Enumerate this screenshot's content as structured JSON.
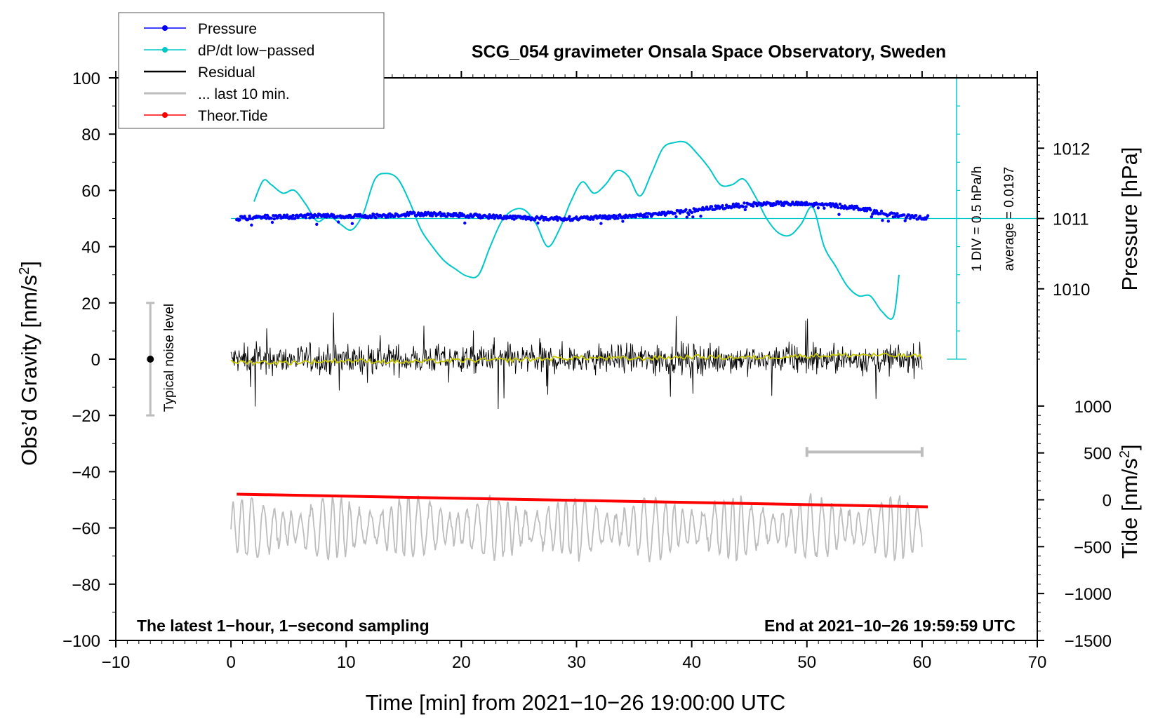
{
  "chart_data": {
    "type": "line",
    "title": "SCG_054 gravimeter Onsala Space Observatory, Sweden",
    "xlabel": "Time [min] from 2021−10−26 19:00:00 UTC",
    "ylabel": "Obs’d Gravity [nm/s",
    "ylabel_sup": "2",
    "ylabel_close": "]",
    "xlim": [
      -10,
      70
    ],
    "ylim": [
      -100,
      100
    ],
    "x_ticks": [
      -10,
      0,
      10,
      20,
      30,
      40,
      50,
      60,
      70
    ],
    "x_tick_labels": [
      "−10",
      "0",
      "10",
      "20",
      "30",
      "40",
      "50",
      "60",
      "70"
    ],
    "y_ticks": [
      -100,
      -80,
      -60,
      -40,
      -20,
      0,
      20,
      40,
      60,
      80,
      100
    ],
    "y_tick_labels": [
      "−100",
      "−80",
      "−60",
      "−40",
      "−20",
      "0",
      "20",
      "40",
      "60",
      "80",
      "100"
    ],
    "pressure_axis": {
      "label": "Pressure [hPa]",
      "ticks": [
        1010,
        1011,
        1012
      ],
      "tick_labels": [
        "1010",
        "1011",
        "1012"
      ],
      "gravity_at_1011": 50,
      "gravity_per_hpa": 25
    },
    "tide_axis": {
      "label": "Tide [nm/s",
      "label_sup": "2",
      "label_close": "]",
      "ticks": [
        -1500,
        -1000,
        -500,
        0,
        500,
        1000
      ],
      "tick_labels": [
        "−1500",
        "−1000",
        "−500",
        "0",
        "500",
        "1000"
      ],
      "gravity_at_0": -50,
      "gravity_per_unit": 0.03333
    },
    "dpdt_scale": {
      "label": "1 DIV = 0.5 hPa/h",
      "average_label": "average = 0.0197",
      "x": 63,
      "y_range": [
        0,
        100
      ],
      "divisions": 10
    },
    "noise_bar": {
      "label": "Typical noise level",
      "x": -7,
      "center": 0,
      "range": [
        -20,
        20
      ]
    },
    "ten_minute_bar": {
      "x_range": [
        50,
        60
      ],
      "y": -33
    },
    "legend": [
      {
        "label": "Pressure",
        "color": "#0000ff",
        "marker": "dot"
      },
      {
        "label": "dP/dt low−passed",
        "color": "#00c8c8",
        "marker": "dot"
      },
      {
        "label": "Residual",
        "color": "#000000",
        "marker": "none"
      },
      {
        "label": "... last 10 min.",
        "color": "#bdbdbd",
        "marker": "none"
      },
      {
        "label": "Theor.Tide",
        "color": "#ff0000",
        "marker": "dot"
      }
    ],
    "annotations": {
      "bottom_left": "The latest 1−hour, 1−second sampling",
      "bottom_right": "End at 2021−10−26 19:59:59 UTC"
    },
    "series": [
      {
        "name": "Pressure",
        "color": "#0000ff",
        "x": [
          0.5,
          3,
          5,
          7,
          10,
          13,
          16,
          18,
          20,
          23,
          26,
          28,
          30,
          33,
          36,
          39,
          42,
          45,
          47,
          49,
          52,
          55,
          57,
          59,
          60.5
        ],
        "y": [
          50,
          50.5,
          50.6,
          51,
          50.8,
          51,
          51.7,
          51.5,
          51.2,
          50.6,
          50.2,
          50,
          50,
          50.5,
          51.2,
          52.3,
          53.8,
          55,
          55.3,
          55.2,
          54.8,
          53.5,
          51.5,
          50.5,
          50.3
        ]
      },
      {
        "name": "dP/dt low−passed",
        "color": "#00c8c8",
        "x": [
          2,
          2.8,
          3.5,
          4.5,
          5.5,
          6.5,
          7.5,
          8.5,
          9.5,
          10.5,
          11.5,
          12.5,
          13.5,
          14.5,
          15.5,
          16.5,
          17.5,
          18.5,
          19.5,
          20.5,
          21.5,
          22.5,
          23.5,
          24.5,
          25.5,
          26.5,
          27.5,
          28.5,
          29.5,
          30.5,
          31.5,
          32.5,
          33.5,
          34.5,
          35.5,
          36.5,
          37.5,
          38.5,
          39.5,
          40.5,
          41.5,
          42.5,
          43.5,
          44.5,
          45.5,
          46.5,
          47.5,
          48.5,
          49.5,
          50.5,
          51.5,
          52.5,
          53.5,
          54.5,
          55.5,
          56.5,
          57.5,
          58
        ],
        "y": [
          56,
          63.5,
          62,
          59,
          60,
          55,
          49,
          51,
          48,
          46,
          52,
          64,
          66,
          64,
          56,
          46,
          40,
          35,
          32,
          29.5,
          30,
          40,
          49,
          53,
          53,
          48,
          40,
          46,
          56,
          63,
          59,
          62,
          67,
          65,
          58,
          66,
          75,
          77,
          77,
          73,
          68,
          62,
          62,
          64,
          58,
          50,
          45,
          44,
          48,
          54,
          40,
          33,
          26,
          22.5,
          22.5,
          17,
          15,
          30
        ]
      },
      {
        "name": "Residual",
        "color": "#000000",
        "x_range": [
          0,
          60
        ],
        "baseline": 0,
        "envelope": [
          -18,
          18
        ]
      },
      {
        "name": "Residual running mean",
        "color": "#c8c800",
        "x": [
          0,
          5,
          10,
          15,
          20,
          25,
          30,
          35,
          40,
          45,
          50,
          55,
          60
        ],
        "y": [
          -1,
          -1.2,
          -0.5,
          -1,
          -0.5,
          -0.2,
          0.5,
          0.2,
          0.8,
          0.5,
          1.2,
          1.5,
          1
        ]
      },
      {
        "name": "... last 10 min.",
        "color": "#bdbdbd",
        "x_range": [
          0,
          60
        ],
        "baseline": -60,
        "envelope": [
          -77,
          -45
        ]
      },
      {
        "name": "Theor.Tide",
        "color": "#ff0000",
        "x": [
          0.5,
          60.5
        ],
        "y": [
          -48,
          -52.5
        ]
      }
    ]
  }
}
